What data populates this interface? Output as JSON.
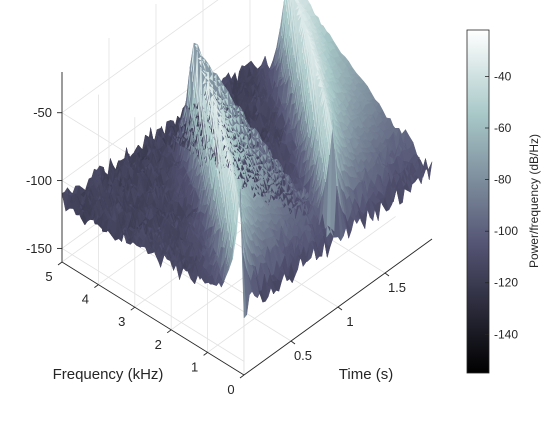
{
  "chart_data": {
    "type": "surface",
    "title": "",
    "xlabel": "Time (s)",
    "ylabel": "Frequency (kHz)",
    "zlabel": "",
    "xlim": [
      0,
      2
    ],
    "ylim": [
      0,
      5
    ],
    "zlim": [
      -160,
      -20
    ],
    "x_ticks": [
      0.5,
      1,
      1.5
    ],
    "x_tick_labels": [
      "0.5",
      "1",
      "1.5"
    ],
    "y_ticks": [
      0,
      1,
      2,
      3,
      4,
      5
    ],
    "y_tick_labels": [
      "0",
      "1",
      "2",
      "3",
      "4",
      "5"
    ],
    "z_ticks": [
      -150,
      -100,
      -50
    ],
    "z_tick_labels": [
      "-150",
      "-100",
      "-50"
    ],
    "colorbar": {
      "label": "Power/frequency (dB/Hz)",
      "range": [
        -155,
        -22
      ],
      "ticks": [
        -140,
        -120,
        -100,
        -80,
        -60,
        -40
      ],
      "tick_labels": [
        "-140",
        "-120",
        "-100",
        "-80",
        "-60",
        "-40"
      ],
      "colormap": "bone"
    },
    "series": [
      {
        "name": "",
        "x": [
          0.0,
          1.0,
          1.0,
          2.0
        ],
        "y": [
          0.1,
          4.0,
          0.1,
          4.0
        ],
        "peak_level_db": -25,
        "noise_floor_db": -110
      }
    ],
    "grid": true
  }
}
